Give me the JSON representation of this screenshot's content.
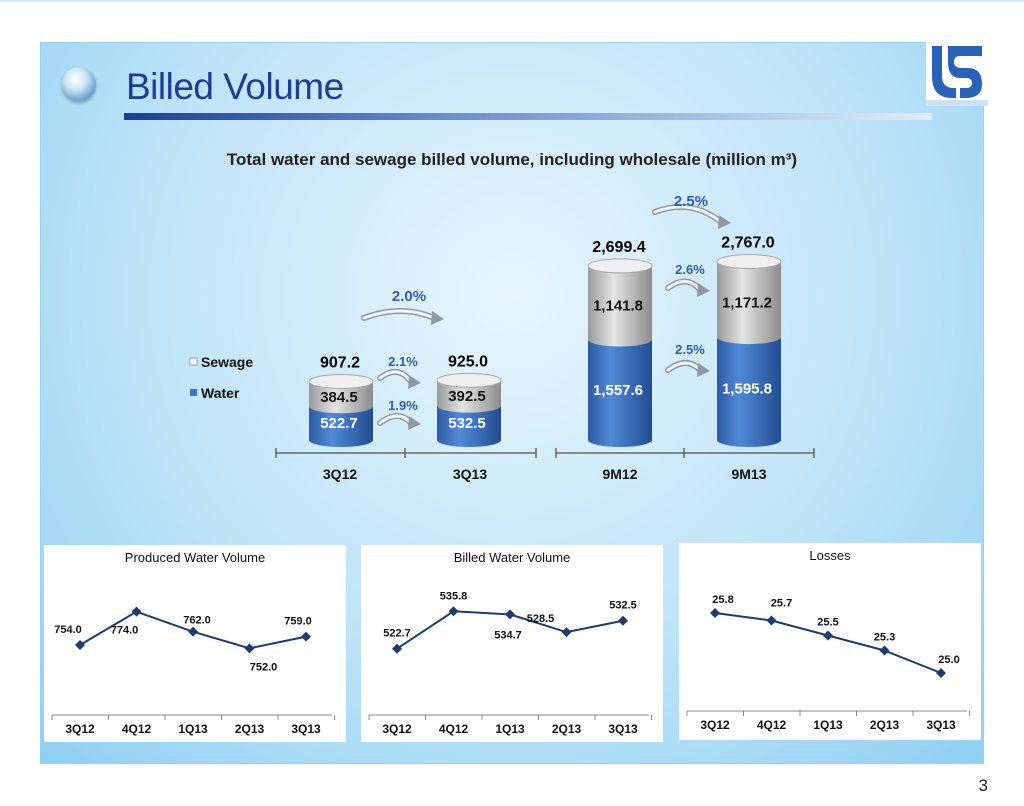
{
  "page": {
    "title": "Billed Volume",
    "subtitle": "Total water and sewage billed volume, including wholesale (million m³)",
    "page_number": "3"
  },
  "colors": {
    "water": "#3c75c4",
    "sewage": "#c8c8c8",
    "title": "#1f3d8f",
    "line": "#1c3c6e"
  },
  "icons": {
    "bullet": "sphere-bullet-icon",
    "logo": "company-logo-icon",
    "arrow": "growth-arrow-icon"
  },
  "chart_data": [
    {
      "type": "bar",
      "stacked": true,
      "categories": [
        "3Q12",
        "3Q13",
        "9M12",
        "9M13"
      ],
      "series": [
        {
          "name": "Water",
          "values": [
            522.7,
            532.5,
            1557.6,
            1595.8
          ],
          "labels": [
            "522.7",
            "532.5",
            "1,557.6",
            "1,595.8"
          ]
        },
        {
          "name": "Sewage",
          "values": [
            384.5,
            392.5,
            1141.8,
            1171.2
          ],
          "labels": [
            "384.5",
            "392.5",
            "1,141.8",
            "1,171.2"
          ]
        }
      ],
      "totals": [
        "907.2",
        "925.0",
        "2,699.4",
        "2,767.0"
      ],
      "growth": {
        "quarter_total": "2.0%",
        "quarter_sewage": "2.1%",
        "quarter_water": "1.9%",
        "nine_month_total": "2.5%",
        "nine_month_sewage": "2.6%",
        "nine_month_water": "2.5%"
      },
      "legend": [
        "Sewage",
        "Water"
      ]
    },
    {
      "type": "line",
      "title": "Produced  Water  Volume",
      "categories": [
        "3Q12",
        "4Q12",
        "1Q13",
        "2Q13",
        "3Q13"
      ],
      "values": [
        754.0,
        774.0,
        762.0,
        752.0,
        759.0
      ],
      "labels": [
        "754.0",
        "774.0",
        "762.0",
        "752.0",
        "759.0"
      ]
    },
    {
      "type": "line",
      "title": "Billed  Water  Volume",
      "categories": [
        "3Q12",
        "4Q12",
        "1Q13",
        "2Q13",
        "3Q13"
      ],
      "values": [
        522.7,
        535.8,
        534.7,
        528.5,
        532.5
      ],
      "labels": [
        "522.7",
        "535.8",
        "534.7",
        "528.5",
        "532.5"
      ]
    },
    {
      "type": "line",
      "title": "Losses",
      "categories": [
        "3Q12",
        "4Q12",
        "1Q13",
        "2Q13",
        "3Q13"
      ],
      "values": [
        25.8,
        25.7,
        25.5,
        25.3,
        25.0
      ],
      "labels": [
        "25.8",
        "25.7",
        "25.5",
        "25.3",
        "25.0"
      ]
    }
  ]
}
